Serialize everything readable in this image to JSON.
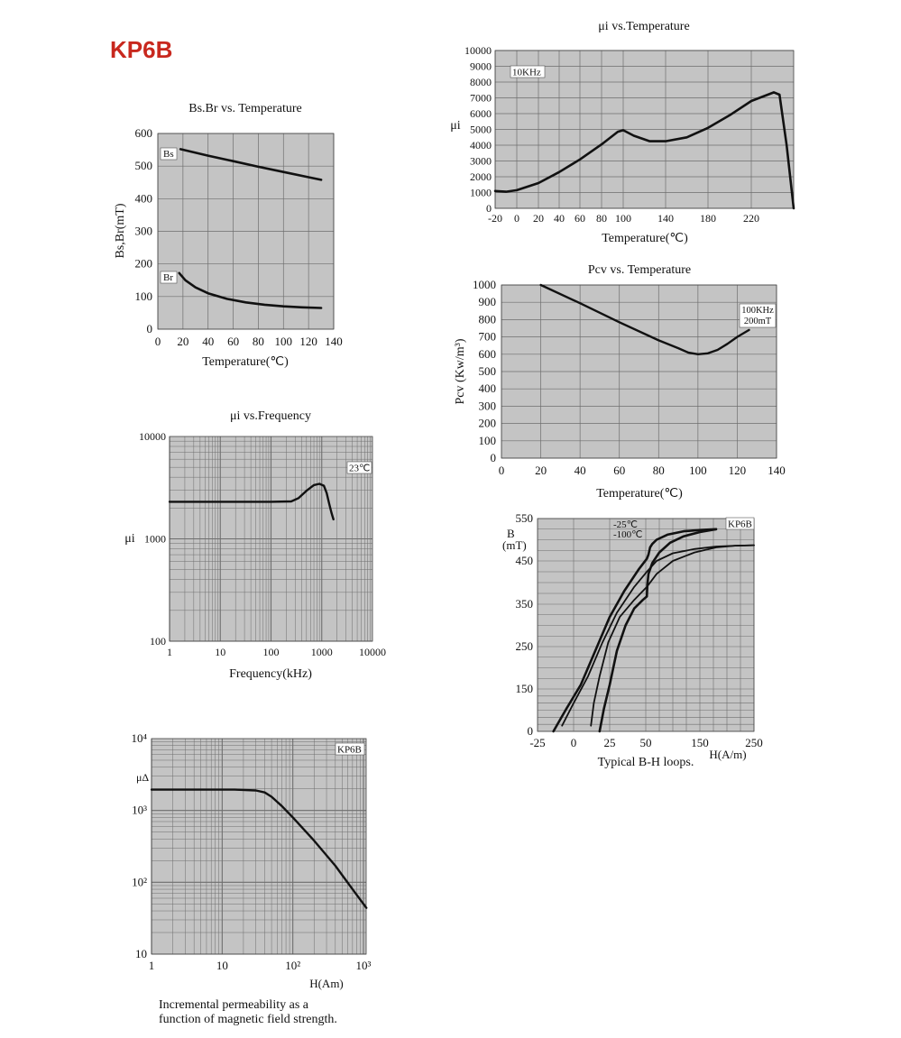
{
  "page": {
    "title": "KP6B",
    "title_color": "#c8281e"
  },
  "colors": {
    "plot_bg": "#c4c4c4",
    "grid": "#6e6e6e",
    "curve": "#111111"
  },
  "chart_data": [
    {
      "id": "mu_temp",
      "type": "line",
      "title": "μi  vs.Temperature",
      "xlabel": "Temperature(℃)",
      "ylabel": "μi",
      "xlim": [
        -20,
        250
      ],
      "ylim": [
        0,
        10000
      ],
      "xticks": [
        -20,
        0,
        20,
        40,
        60,
        80,
        100,
        140,
        180,
        220
      ],
      "yticks": [
        0,
        1000,
        2000,
        3000,
        4000,
        5000,
        6000,
        7000,
        8000,
        9000,
        10000
      ],
      "annotation": "10KHz",
      "series": [
        {
          "name": "10KHz",
          "x": [
            -20,
            -10,
            0,
            20,
            40,
            60,
            80,
            95,
            100,
            110,
            125,
            140,
            160,
            180,
            200,
            220,
            236,
            240,
            245,
            250
          ],
          "y": [
            1100,
            1050,
            1150,
            1600,
            2300,
            3100,
            4050,
            4850,
            4950,
            4600,
            4250,
            4250,
            4500,
            5100,
            5900,
            6800,
            7350,
            7200,
            4000,
            0
          ]
        }
      ]
    },
    {
      "id": "bs_br_temp",
      "type": "line",
      "title": "Bs.Br  vs. Temperature",
      "xlabel": "Temperature(℃)",
      "ylabel": "Bs,Br(mT)",
      "xlim": [
        0,
        140
      ],
      "ylim": [
        0,
        600
      ],
      "xticks": [
        0,
        20,
        40,
        60,
        80,
        100,
        120,
        140
      ],
      "yticks": [
        0,
        100,
        200,
        300,
        400,
        500,
        600
      ],
      "series": [
        {
          "name": "Bs",
          "x": [
            18,
            40,
            60,
            80,
            100,
            120,
            130
          ],
          "y": [
            552,
            532,
            515,
            498,
            482,
            466,
            458
          ]
        },
        {
          "name": "Br",
          "x": [
            17,
            22,
            30,
            40,
            55,
            70,
            85,
            100,
            115,
            130
          ],
          "y": [
            172,
            150,
            128,
            110,
            93,
            82,
            75,
            70,
            67,
            65
          ]
        }
      ]
    },
    {
      "id": "pcv_temp",
      "type": "line",
      "title": "Pcv vs. Temperature",
      "xlabel": "Temperature(℃)",
      "ylabel": "Pcv (Kw/m³)",
      "xlim": [
        0,
        140
      ],
      "ylim": [
        0,
        1000
      ],
      "xticks": [
        0,
        20,
        40,
        60,
        80,
        100,
        120,
        140
      ],
      "yticks": [
        0,
        100,
        200,
        300,
        400,
        500,
        600,
        700,
        800,
        900,
        1000
      ],
      "annotation": [
        "100KHz",
        "200mT"
      ],
      "series": [
        {
          "name": "100KHz 200mT",
          "x": [
            20,
            40,
            60,
            80,
            90,
            95,
            100,
            105,
            110,
            115,
            120,
            126
          ],
          "y": [
            1000,
            895,
            785,
            680,
            635,
            610,
            600,
            605,
            625,
            660,
            700,
            740
          ]
        }
      ]
    },
    {
      "id": "mu_freq",
      "type": "line",
      "title": "μi  vs.Frequency",
      "xlabel": "Frequency(kHz)",
      "ylabel": "μi",
      "xscale": "log",
      "yscale": "log",
      "xlim": [
        1,
        10000
      ],
      "ylim": [
        100,
        10000
      ],
      "xticks": [
        "1",
        "10",
        "100",
        "1000",
        "10000"
      ],
      "yticks": [
        "100",
        "1000",
        "10000"
      ],
      "annotation": "23℃",
      "series": [
        {
          "name": "23℃",
          "x": [
            1,
            10,
            100,
            250,
            350,
            500,
            700,
            900,
            1100,
            1250,
            1400,
            1550,
            1700
          ],
          "y": [
            2300,
            2300,
            2300,
            2320,
            2500,
            2950,
            3350,
            3450,
            3300,
            2800,
            2200,
            1800,
            1550
          ]
        }
      ]
    },
    {
      "id": "bh_loops",
      "type": "line",
      "title": "Typical B-H loops.",
      "xlabel": "H(A/m)",
      "ylabel": [
        "B",
        "(mT)"
      ],
      "xlim": [
        -25,
        250
      ],
      "ylim": [
        0,
        550
      ],
      "xticks": [
        "-25",
        "0",
        "25",
        "50",
        "150",
        "250"
      ],
      "yticks": [
        "0",
        "150",
        "250",
        "350",
        "450",
        "550"
      ],
      "annotation": [
        "KP6B",
        "-25℃",
        "-100℃"
      ],
      "series": [
        {
          "name": "-25℃ upper",
          "x": [
            -14,
            -5,
            5,
            15,
            25,
            35,
            45,
            52,
            55,
            58,
            62,
            70,
            90,
            120,
            150,
            180
          ],
          "y": [
            0,
            80,
            160,
            240,
            320,
            380,
            430,
            455,
            465,
            482,
            490,
            500,
            512,
            520,
            523,
            525
          ]
        },
        {
          "name": "-25℃ lower",
          "x": [
            18,
            21,
            25,
            30,
            36,
            42,
            48,
            52,
            53,
            55,
            62,
            75,
            95,
            120,
            150,
            180
          ],
          "y": [
            0,
            80,
            160,
            240,
            300,
            340,
            360,
            368,
            395,
            420,
            445,
            470,
            493,
            508,
            518,
            525
          ]
        },
        {
          "name": "-100℃ upper",
          "x": [
            -8,
            0,
            10,
            20,
            30,
            42,
            52,
            70,
            100,
            140,
            180,
            215,
            250
          ],
          "y": [
            20,
            100,
            180,
            260,
            330,
            390,
            425,
            450,
            468,
            478,
            484,
            486,
            487
          ]
        },
        {
          "name": "-100℃ lower",
          "x": [
            12,
            14,
            18,
            24,
            32,
            42,
            52,
            70,
            100,
            140,
            180,
            215,
            250
          ],
          "y": [
            20,
            100,
            180,
            260,
            320,
            360,
            390,
            420,
            450,
            470,
            482,
            486,
            487
          ]
        }
      ]
    },
    {
      "id": "incremental_perm",
      "type": "line",
      "title": "Incremental permeability as a function of magnetic field strength.",
      "xlabel": "H(Am)",
      "ylabel": "μΔ",
      "xscale": "log",
      "yscale": "log",
      "xlim": [
        1,
        1200
      ],
      "ylim": [
        10,
        10000
      ],
      "xticks": [
        "1",
        "10",
        "10²",
        "10³"
      ],
      "yticks": [
        "10",
        "10²",
        "10³",
        "10⁴"
      ],
      "annotation": "KP6B",
      "series": [
        {
          "name": "KP6B",
          "x": [
            1,
            5,
            15,
            30,
            40,
            50,
            70,
            100,
            200,
            400,
            700,
            1100
          ],
          "y": [
            1950,
            1950,
            1950,
            1900,
            1780,
            1550,
            1150,
            800,
            380,
            170,
            80,
            44
          ]
        }
      ]
    }
  ]
}
